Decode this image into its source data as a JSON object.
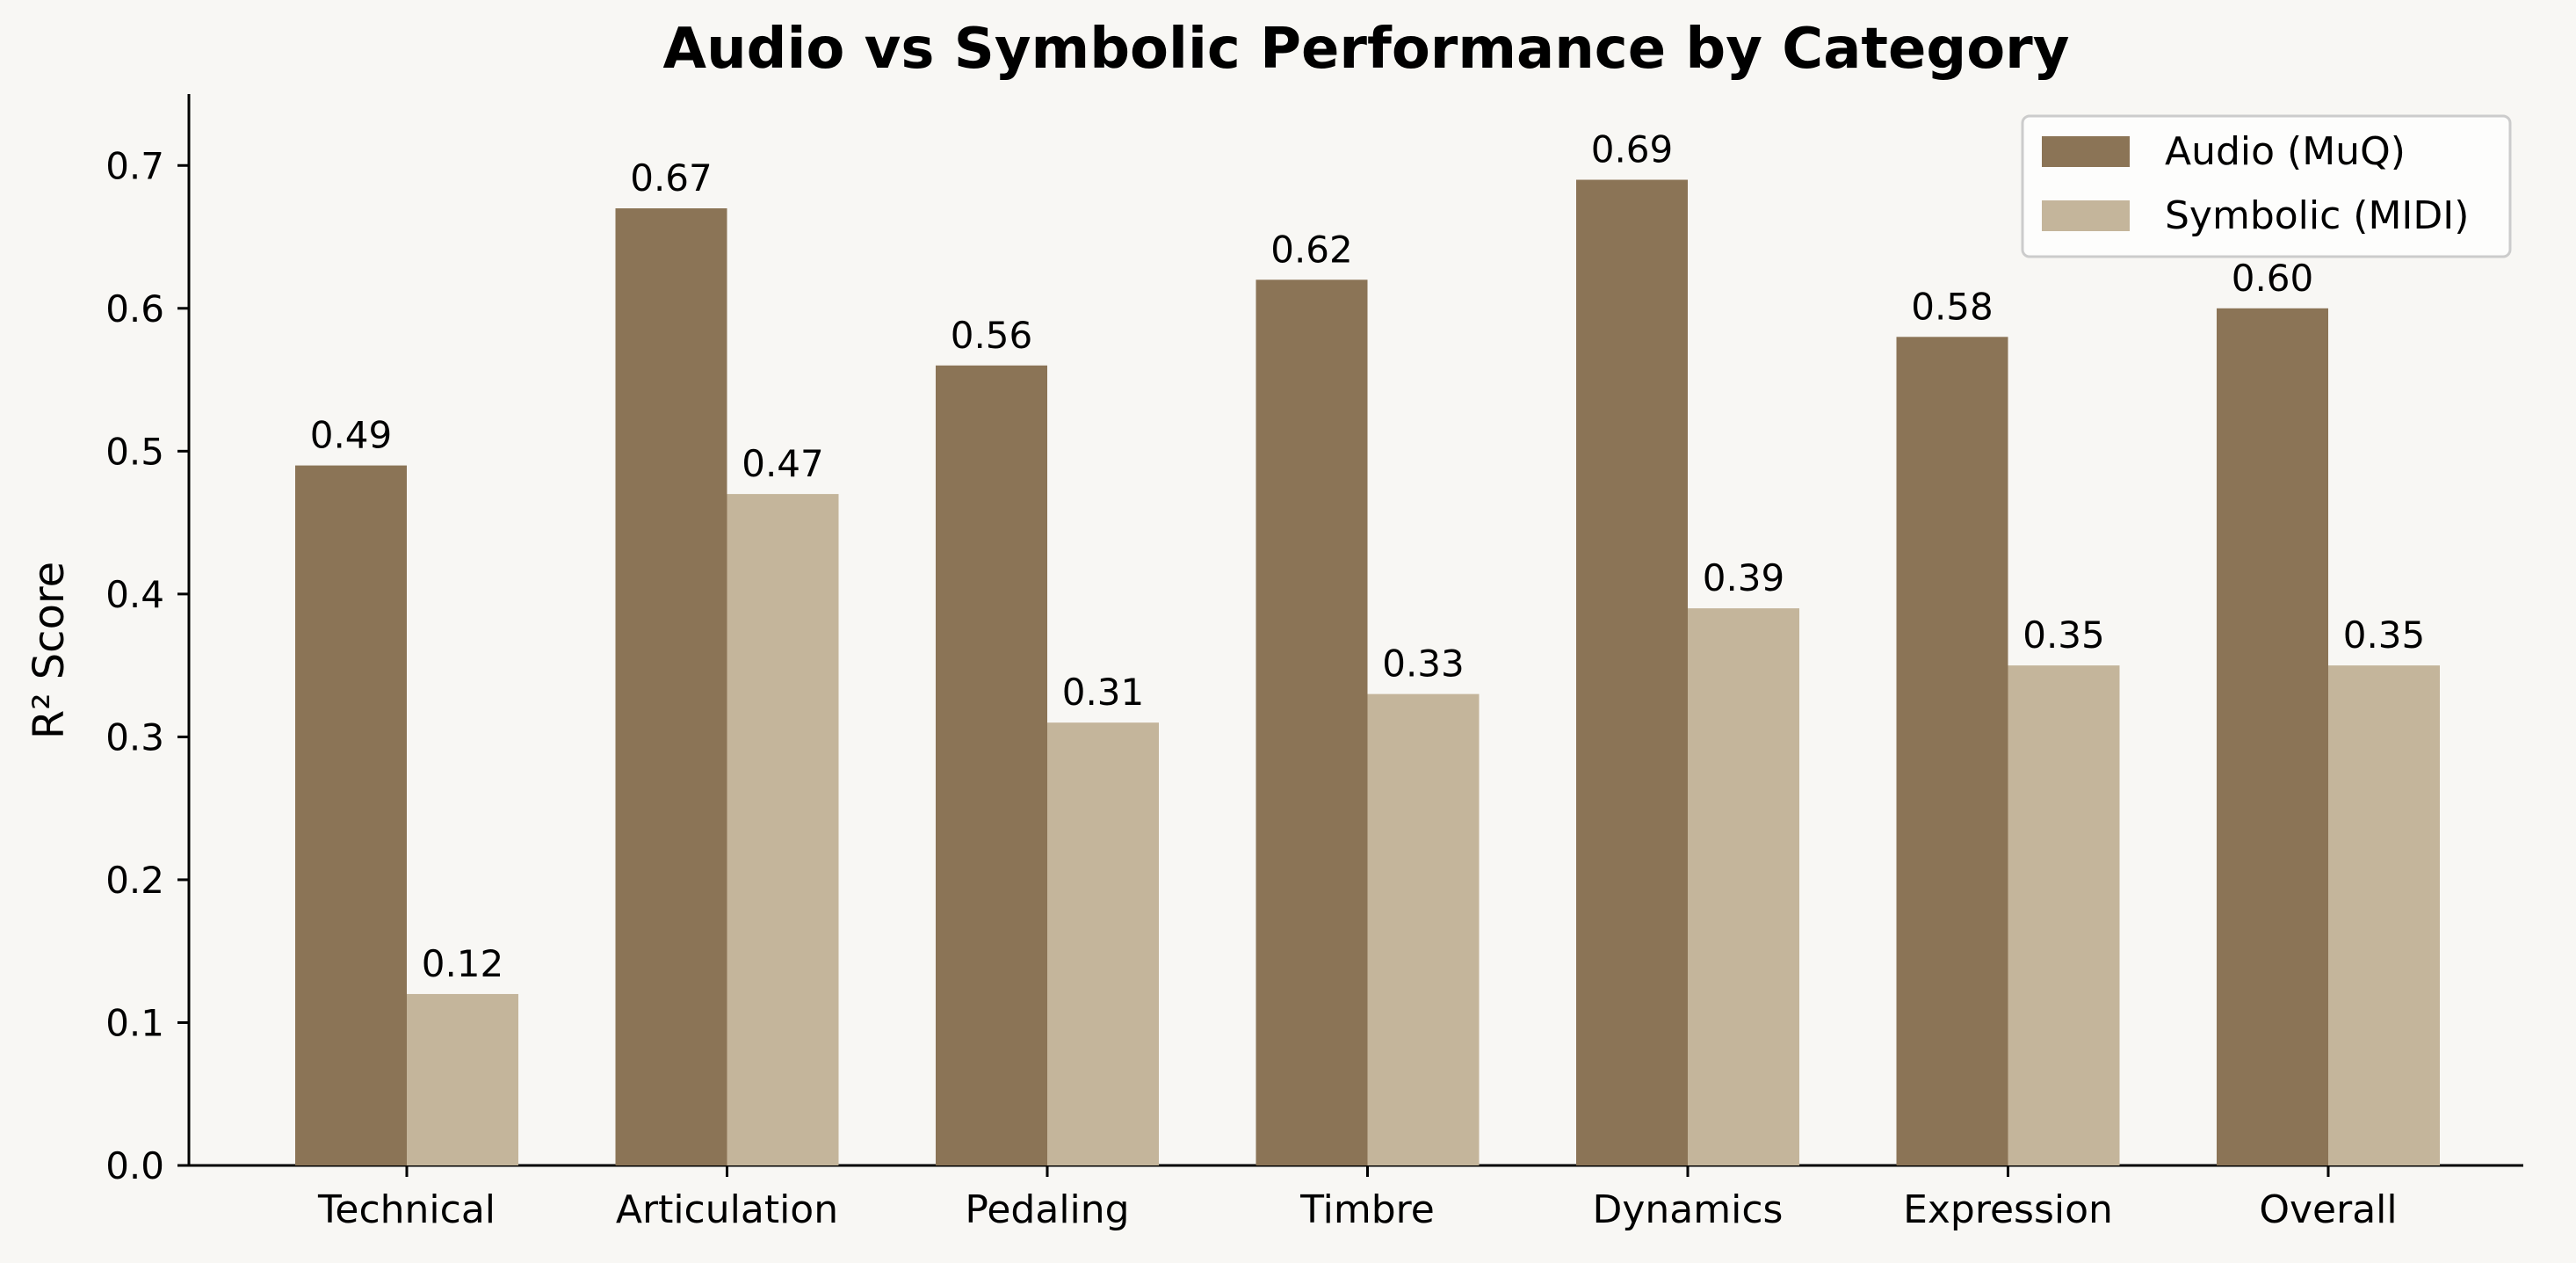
{
  "colors": {
    "background": "#f8f7f4",
    "audio": "#8b7456",
    "symbolic": "#c4b59b",
    "axis": "#000000",
    "legend_border": "#cccccc"
  },
  "chart_data": {
    "type": "bar",
    "title": "Audio vs Symbolic Performance by Category",
    "xlabel": "",
    "ylabel": "R² Score",
    "ylim": [
      0,
      0.75
    ],
    "yticks": [
      "0.0",
      "0.1",
      "0.2",
      "0.3",
      "0.4",
      "0.5",
      "0.6",
      "0.7"
    ],
    "grid": false,
    "legend_position": "top-right",
    "categories": [
      "Technical",
      "Articulation",
      "Pedaling",
      "Timbre",
      "Dynamics",
      "Expression",
      "Overall"
    ],
    "series": [
      {
        "name": "Audio (MuQ)",
        "color_key": "audio",
        "values": [
          0.49,
          0.67,
          0.56,
          0.62,
          0.69,
          0.58,
          0.6
        ],
        "labels": [
          "0.49",
          "0.67",
          "0.56",
          "0.62",
          "0.69",
          "0.58",
          "0.60"
        ]
      },
      {
        "name": "Symbolic (MIDI)",
        "color_key": "symbolic",
        "values": [
          0.12,
          0.47,
          0.31,
          0.33,
          0.39,
          0.35,
          0.35
        ],
        "labels": [
          "0.12",
          "0.47",
          "0.31",
          "0.33",
          "0.39",
          "0.35",
          "0.35"
        ]
      }
    ]
  }
}
